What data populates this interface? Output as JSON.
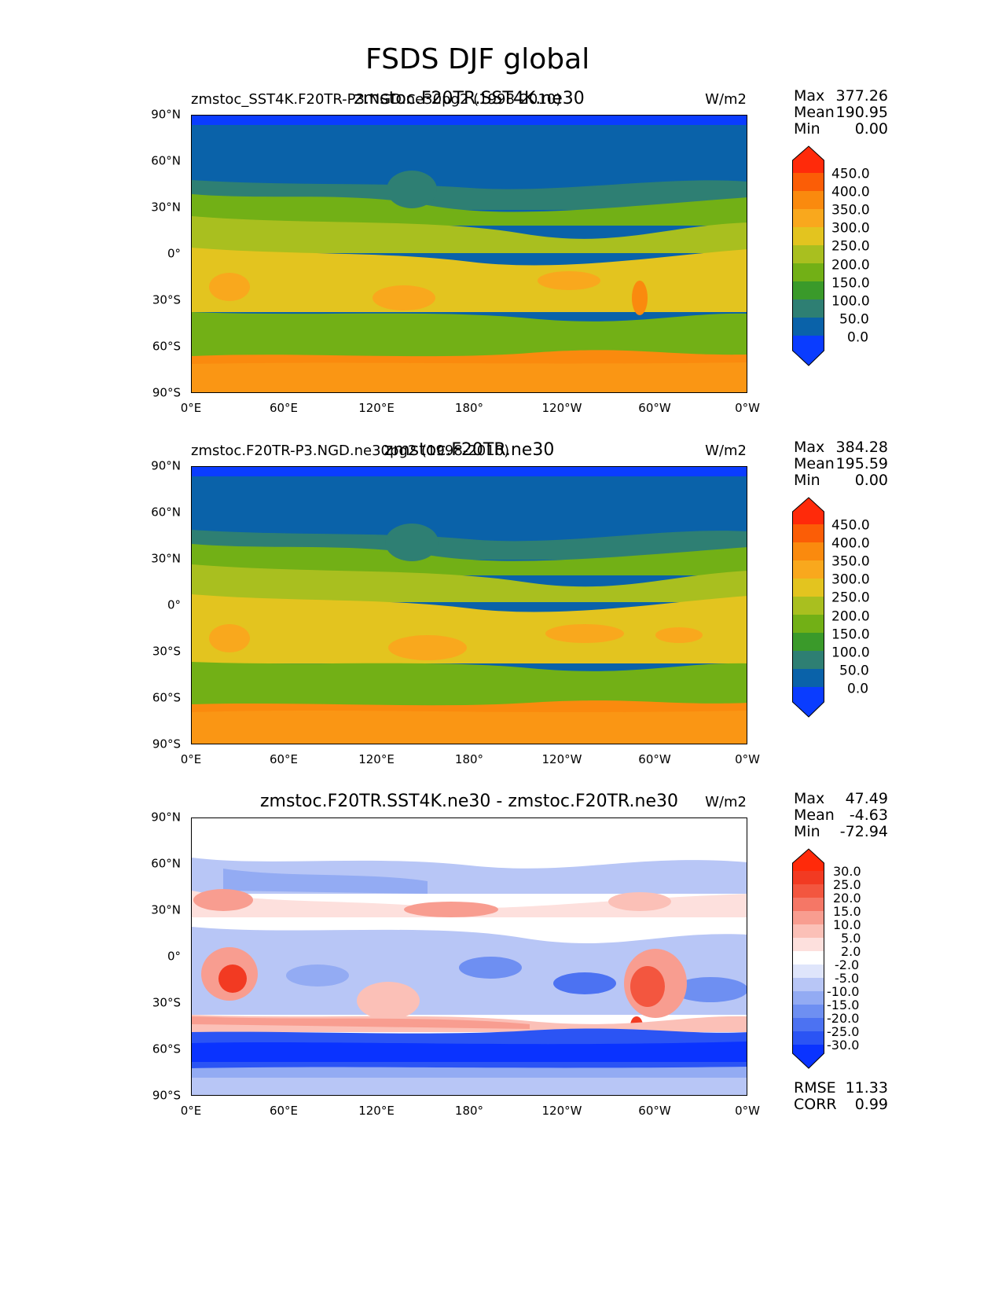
{
  "title": "FSDS DJF global",
  "units": "W/m2",
  "xticks": [
    "0°E",
    "60°E",
    "120°E",
    "180°",
    "120°W",
    "60°W",
    "0°W"
  ],
  "yticks": [
    "90°N",
    "60°N",
    "30°N",
    "0°",
    "30°S",
    "60°S",
    "90°S"
  ],
  "panels": [
    {
      "title_left": "zmstoc_SST4K.F20TR-P3.NGD.ne30pg2 (1998-2010)",
      "title_center": "zmstoc.F20TR.SST4K.ne30",
      "stats": [
        {
          "label": "Max",
          "value": "377.26"
        },
        {
          "label": "Mean",
          "value": "190.95"
        },
        {
          "label": "Min",
          "value": "0.00"
        }
      ],
      "colorbar_labels": [
        "450.0",
        "400.0",
        "350.0",
        "300.0",
        "250.0",
        "200.0",
        "150.0",
        "100.0",
        "50.0",
        "0.0"
      ]
    },
    {
      "title_left": "zmstoc.F20TR-P3.NGD.ne30pg2 (1998-2010)",
      "title_center": "zmstoc.F20TR.ne30",
      "stats": [
        {
          "label": "Max",
          "value": "384.28"
        },
        {
          "label": "Mean",
          "value": "195.59"
        },
        {
          "label": "Min",
          "value": "0.00"
        }
      ],
      "colorbar_labels": [
        "450.0",
        "400.0",
        "350.0",
        "300.0",
        "250.0",
        "200.0",
        "150.0",
        "100.0",
        "50.0",
        "0.0"
      ]
    },
    {
      "title_center": "zmstoc.F20TR.SST4K.ne30 - zmstoc.F20TR.ne30",
      "stats": [
        {
          "label": "Max",
          "value": "47.49"
        },
        {
          "label": "Mean",
          "value": "-4.63"
        },
        {
          "label": "Min",
          "value": "-72.94"
        }
      ],
      "colorbar_labels": [
        "30.0",
        "25.0",
        "20.0",
        "15.0",
        "10.0",
        "5.0",
        "2.0",
        "-2.0",
        "-5.0",
        "-10.0",
        "-15.0",
        "-20.0",
        "-25.0",
        "-30.0"
      ],
      "rmse_label": "RMSE",
      "rmse_value": "11.33",
      "corr_label": "CORR",
      "corr_value": "0.99"
    }
  ],
  "colors": {
    "abs": [
      "#0a3cff",
      "#0a62a9",
      "#2e7f73",
      "#3a9a2a",
      "#72b016",
      "#a9bf1f",
      "#e3c41f",
      "#f9a81d",
      "#fa8a0e",
      "#fb5d06",
      "#ff2a0a"
    ],
    "diff": [
      "#0a33ff",
      "#2b54f4",
      "#4c72f2",
      "#6e8ff2",
      "#93abf3",
      "#b8c6f6",
      "#dfe5fb",
      "#ffffff",
      "#fde0dd",
      "#fbc0b7",
      "#f89d90",
      "#f57766",
      "#f3563f",
      "#f23a22",
      "#ff2a0a"
    ],
    "ocean_land_line": "#000000"
  }
}
